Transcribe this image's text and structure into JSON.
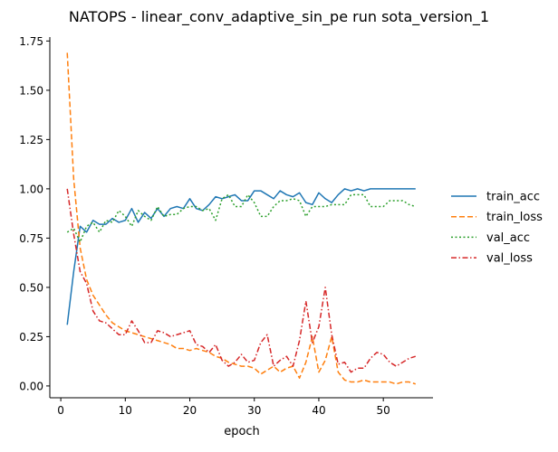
{
  "chart_data": {
    "type": "line",
    "title": "NATOPS - linear_conv_adaptive_sin_pe run sota_version_1",
    "xlabel": "epoch",
    "ylabel": "",
    "xlim": [
      -1.7,
      57.7
    ],
    "ylim": [
      -0.06,
      1.77
    ],
    "x_ticks": [
      0,
      10,
      20,
      30,
      40,
      50
    ],
    "y_ticks": [
      0.0,
      0.25,
      0.5,
      0.75,
      1.0,
      1.25,
      1.5,
      1.75
    ],
    "y_tick_labels": [
      "0.00",
      "0.25",
      "0.50",
      "0.75",
      "1.00",
      "1.25",
      "1.50",
      "1.75"
    ],
    "grid": false,
    "legend_position": "right",
    "x": [
      1,
      2,
      3,
      4,
      5,
      6,
      7,
      8,
      9,
      10,
      11,
      12,
      13,
      14,
      15,
      16,
      17,
      18,
      19,
      20,
      21,
      22,
      23,
      24,
      25,
      26,
      27,
      28,
      29,
      30,
      31,
      32,
      33,
      34,
      35,
      36,
      37,
      38,
      39,
      40,
      41,
      42,
      43,
      44,
      45,
      46,
      47,
      48,
      49,
      50,
      51,
      52,
      53,
      54,
      55
    ],
    "series": [
      {
        "name": "train_acc",
        "color": "#1f77b4",
        "dash": "solid",
        "values": [
          0.31,
          0.58,
          0.81,
          0.78,
          0.84,
          0.82,
          0.82,
          0.85,
          0.83,
          0.84,
          0.9,
          0.83,
          0.88,
          0.85,
          0.9,
          0.86,
          0.9,
          0.91,
          0.9,
          0.95,
          0.9,
          0.89,
          0.92,
          0.96,
          0.95,
          0.96,
          0.97,
          0.94,
          0.94,
          0.99,
          0.99,
          0.97,
          0.95,
          0.99,
          0.97,
          0.96,
          0.98,
          0.93,
          0.92,
          0.98,
          0.95,
          0.93,
          0.97,
          1.0,
          0.99,
          1.0,
          0.99,
          1.0,
          1.0,
          1.0,
          1.0,
          1.0,
          1.0,
          1.0,
          1.0
        ]
      },
      {
        "name": "train_loss",
        "color": "#ff7f0e",
        "dash": "dashed",
        "values": [
          1.69,
          1.05,
          0.7,
          0.54,
          0.46,
          0.41,
          0.36,
          0.32,
          0.3,
          0.28,
          0.27,
          0.26,
          0.25,
          0.24,
          0.23,
          0.22,
          0.21,
          0.19,
          0.19,
          0.18,
          0.19,
          0.18,
          0.17,
          0.15,
          0.14,
          0.12,
          0.11,
          0.1,
          0.1,
          0.09,
          0.06,
          0.08,
          0.1,
          0.07,
          0.09,
          0.1,
          0.04,
          0.12,
          0.25,
          0.07,
          0.13,
          0.25,
          0.07,
          0.03,
          0.02,
          0.02,
          0.03,
          0.02,
          0.02,
          0.02,
          0.02,
          0.01,
          0.02,
          0.02,
          0.01
        ]
      },
      {
        "name": "val_acc",
        "color": "#2ca02c",
        "dash": "dotted",
        "values": [
          0.78,
          0.8,
          0.73,
          0.81,
          0.83,
          0.78,
          0.84,
          0.83,
          0.89,
          0.86,
          0.81,
          0.89,
          0.86,
          0.84,
          0.91,
          0.86,
          0.87,
          0.87,
          0.9,
          0.91,
          0.91,
          0.89,
          0.9,
          0.84,
          0.95,
          0.97,
          0.91,
          0.91,
          0.97,
          0.93,
          0.86,
          0.86,
          0.91,
          0.94,
          0.94,
          0.95,
          0.94,
          0.86,
          0.91,
          0.91,
          0.91,
          0.92,
          0.92,
          0.92,
          0.97,
          0.97,
          0.97,
          0.91,
          0.91,
          0.91,
          0.94,
          0.94,
          0.94,
          0.92,
          0.91
        ]
      },
      {
        "name": "val_loss",
        "color": "#d62728",
        "dash": "dashdot",
        "values": [
          1.0,
          0.77,
          0.58,
          0.52,
          0.38,
          0.33,
          0.32,
          0.29,
          0.26,
          0.26,
          0.33,
          0.28,
          0.22,
          0.22,
          0.28,
          0.27,
          0.25,
          0.26,
          0.27,
          0.28,
          0.21,
          0.2,
          0.17,
          0.21,
          0.13,
          0.1,
          0.12,
          0.16,
          0.12,
          0.13,
          0.22,
          0.26,
          0.1,
          0.13,
          0.15,
          0.1,
          0.23,
          0.43,
          0.22,
          0.3,
          0.5,
          0.26,
          0.11,
          0.12,
          0.07,
          0.09,
          0.09,
          0.14,
          0.17,
          0.16,
          0.12,
          0.1,
          0.12,
          0.14,
          0.15
        ]
      }
    ]
  }
}
